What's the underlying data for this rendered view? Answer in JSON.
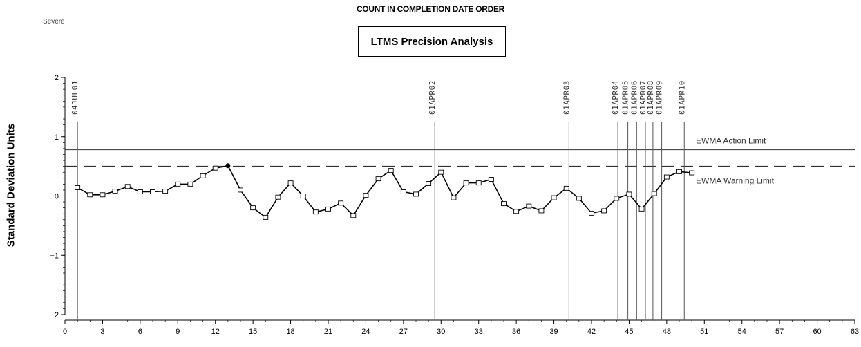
{
  "header": {
    "severity": "Severe",
    "top_title": "COUNT IN COMPLETION DATE ORDER",
    "box_title": "LTMS Precision Analysis"
  },
  "chart_data": {
    "type": "line",
    "title": "LTMS Precision Analysis",
    "subtitle": "COUNT IN COMPLETION DATE ORDER",
    "xlabel": "",
    "ylabel": "Standard Deviation Units",
    "xlim": [
      0,
      63
    ],
    "ylim": [
      -2,
      2
    ],
    "x_ticks": [
      0,
      3,
      6,
      9,
      12,
      15,
      18,
      21,
      24,
      27,
      30,
      33,
      36,
      39,
      42,
      45,
      48,
      51,
      54,
      57,
      60,
      63
    ],
    "y_ticks": [
      -2,
      -1,
      0,
      1,
      2
    ],
    "grid": false,
    "series": [
      {
        "name": "",
        "color": "#000000",
        "marker": "open-square",
        "x": [
          1,
          2,
          3,
          4,
          5,
          6,
          7,
          8,
          9,
          10,
          11,
          12,
          13,
          14,
          15,
          16,
          17,
          18,
          19,
          20,
          21,
          22,
          23,
          24,
          25,
          26,
          27,
          28,
          29,
          30,
          31,
          32,
          33,
          34,
          35,
          36,
          37,
          38,
          39,
          40,
          41,
          42,
          43,
          44,
          45,
          46,
          47,
          48,
          49,
          50
        ],
        "values": [
          0.14,
          0.02,
          0.02,
          0.08,
          0.16,
          0.07,
          0.07,
          0.08,
          0.2,
          0.2,
          0.34,
          0.47,
          0.51,
          0.1,
          -0.2,
          -0.36,
          -0.02,
          0.22,
          0.0,
          -0.27,
          -0.22,
          -0.12,
          -0.33,
          0.01,
          0.29,
          0.43,
          0.07,
          0.03,
          0.21,
          0.4,
          -0.03,
          0.22,
          0.22,
          0.28,
          -0.13,
          -0.26,
          -0.17,
          -0.25,
          -0.03,
          0.13,
          -0.04,
          -0.29,
          -0.25,
          -0.04,
          0.03,
          -0.22,
          0.04,
          0.32,
          0.41,
          0.39
        ],
        "highlight_x": 13
      }
    ],
    "reference_lines": [
      {
        "label": "EWMA Action Limit",
        "value": 0.78,
        "style": "solid"
      },
      {
        "label": "EWMA Warning Limit",
        "value": 0.5,
        "style": "dashed"
      }
    ],
    "events": [
      {
        "label": "04JUL01",
        "x": 1
      },
      {
        "label": "01APR02",
        "x": 29.5
      },
      {
        "label": "01APR03",
        "x": 40.2
      },
      {
        "label": "01APR04",
        "x": 44.1
      },
      {
        "label": "01APR05",
        "x": 44.9
      },
      {
        "label": "01APR06",
        "x": 45.6
      },
      {
        "label": "01APR07",
        "x": 46.3
      },
      {
        "label": "01APR08",
        "x": 46.9
      },
      {
        "label": "01APR09",
        "x": 47.6
      },
      {
        "label": "01APR10",
        "x": 49.4
      }
    ]
  }
}
